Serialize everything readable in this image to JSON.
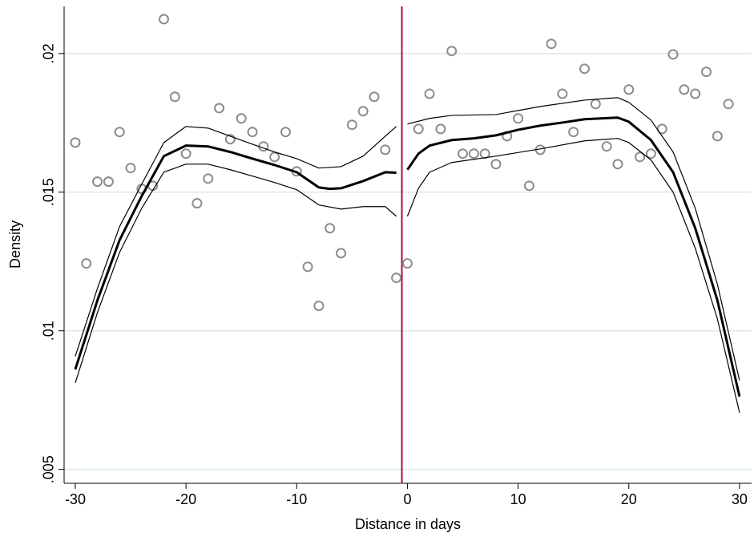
{
  "chart_data": {
    "type": "scatter",
    "x_label": "Distance in days",
    "y_label": "Density",
    "xlim": [
      -31.01,
      31.09
    ],
    "ylim": [
      0.0045,
      0.0217
    ],
    "xticks": [
      -30,
      -20,
      -10,
      0,
      10,
      20,
      30
    ],
    "yticks": [
      {
        "value": 0.005,
        "label": ".005"
      },
      {
        "value": 0.01,
        "label": ".01"
      },
      {
        "value": 0.015,
        "label": ".015"
      },
      {
        "value": 0.02,
        "label": ".02"
      }
    ],
    "grid": true,
    "grid_color": "#dbe8ec",
    "cutoff": -0.5,
    "cutoff_color": "#b0103a",
    "series": [
      {
        "mode": "markers",
        "color": "#8c8c8c",
        "x": [
          -30,
          -29,
          -28,
          -27,
          -26,
          -25,
          -24,
          -23,
          -22,
          -21,
          -20,
          -19,
          -18,
          -17,
          -16,
          -15,
          -14,
          -13,
          -12,
          -11,
          -10,
          -9,
          -8,
          -7,
          -6,
          -5,
          -4,
          -3,
          -2,
          -1,
          0,
          1,
          2,
          3,
          4,
          5,
          6,
          7,
          8,
          9,
          10,
          11,
          12,
          13,
          14,
          15,
          16,
          17,
          18,
          19,
          20,
          21,
          22,
          23,
          24,
          25,
          26,
          27,
          28,
          29
        ],
        "values": [
          0.01679,
          0.01243,
          0.01538,
          0.01538,
          0.01717,
          0.01587,
          0.01512,
          0.01523,
          0.02124,
          0.01844,
          0.01639,
          0.0146,
          0.01549,
          0.01803,
          0.01691,
          0.01766,
          0.01717,
          0.01665,
          0.01627,
          0.01717,
          0.01575,
          0.01231,
          0.0109,
          0.0137,
          0.0128,
          0.01743,
          0.01792,
          0.01844,
          0.01653,
          0.01191,
          0.01243,
          0.01728,
          0.01855,
          0.01728,
          0.02009,
          0.01639,
          0.01639,
          0.01639,
          0.01601,
          0.01702,
          0.01766,
          0.01523,
          0.01653,
          0.02035,
          0.01855,
          0.01717,
          0.01945,
          0.01818,
          0.01665,
          0.01601,
          0.0187,
          0.01627,
          0.01639,
          0.01728,
          0.01997,
          0.0187,
          0.01855,
          0.01934,
          0.01702,
          0.01818
        ]
      },
      {
        "mode": "line",
        "color": "#000",
        "width": 3,
        "x": [
          -30,
          -28,
          -26,
          -24,
          -22,
          -20,
          -18,
          -16,
          -14,
          -12,
          -10,
          -8,
          -7,
          -6,
          -4,
          -2,
          -1
        ],
        "values": [
          0.00861,
          0.0111,
          0.01327,
          0.01486,
          0.0163,
          0.01668,
          0.01665,
          0.01645,
          0.01621,
          0.01598,
          0.01572,
          0.01517,
          0.01512,
          0.01514,
          0.0154,
          0.01572,
          0.0157
        ]
      },
      {
        "mode": "line",
        "color": "#000",
        "width": 1.2,
        "x": [
          -30,
          -28,
          -26,
          -24,
          -22,
          -20,
          -18,
          -16,
          -14,
          -12,
          -10,
          -8,
          -6,
          -4,
          -2,
          -1
        ],
        "values": [
          0.00908,
          0.01153,
          0.01376,
          0.01529,
          0.01679,
          0.01737,
          0.01731,
          0.01702,
          0.01673,
          0.01645,
          0.01621,
          0.01587,
          0.01592,
          0.0163,
          0.01702,
          0.01737
        ]
      },
      {
        "mode": "line",
        "color": "#000",
        "width": 1.2,
        "x": [
          -30,
          -28,
          -26,
          -24,
          -22,
          -20,
          -18,
          -16,
          -14,
          -12,
          -10,
          -8,
          -6,
          -4,
          -2,
          -1
        ],
        "values": [
          0.00812,
          0.01066,
          0.01283,
          0.01442,
          0.01572,
          0.01601,
          0.01601,
          0.01581,
          0.01558,
          0.01535,
          0.01509,
          0.01454,
          0.01439,
          0.01448,
          0.01448,
          0.01413
        ]
      },
      {
        "mode": "line",
        "color": "#000",
        "width": 3,
        "x": [
          0,
          1,
          2,
          4,
          6,
          8,
          10,
          12,
          14,
          16,
          19,
          20,
          22,
          24,
          26,
          28,
          30
        ],
        "values": [
          0.01581,
          0.01639,
          0.01668,
          0.01688,
          0.01694,
          0.01705,
          0.01725,
          0.0174,
          0.01751,
          0.01763,
          0.01769,
          0.01754,
          0.01688,
          0.01572,
          0.0137,
          0.0111,
          0.00763
        ]
      },
      {
        "mode": "line",
        "color": "#000",
        "width": 1.2,
        "x": [
          0,
          2,
          4,
          8,
          12,
          16,
          19,
          20,
          22,
          24,
          26,
          28,
          30
        ],
        "values": [
          0.01746,
          0.01766,
          0.01777,
          0.0178,
          0.01809,
          0.01832,
          0.01841,
          0.01824,
          0.0176,
          0.01645,
          0.01442,
          0.01168,
          0.00821
        ]
      },
      {
        "mode": "line",
        "color": "#000",
        "width": 1.2,
        "x": [
          0,
          1,
          2,
          4,
          8,
          12,
          16,
          19,
          20,
          22,
          24,
          26,
          28,
          30
        ],
        "values": [
          0.01413,
          0.01514,
          0.01572,
          0.01607,
          0.0163,
          0.01656,
          0.01685,
          0.01694,
          0.01679,
          0.01616,
          0.015,
          0.01298,
          0.01043,
          0.00705
        ]
      }
    ]
  }
}
